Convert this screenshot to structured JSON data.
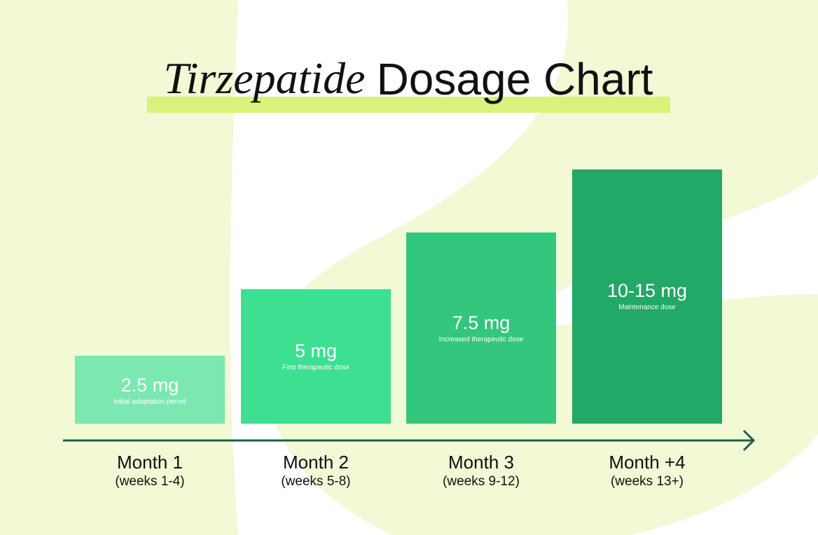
{
  "title": {
    "emphasis": "Tirzepatide",
    "rest": "Dosage Chart"
  },
  "steps": [
    {
      "dose": "2.5 mg",
      "note": "Initial adaptation period",
      "period": "Month 1",
      "weeks": "(weeks 1-4)"
    },
    {
      "dose": "5 mg",
      "note": "First therapeutic dose",
      "period": "Month 2",
      "weeks": "(weeks 5-8)"
    },
    {
      "dose": "7.5 mg",
      "note": "Increased therapeutic dose",
      "period": "Month 3",
      "weeks": "(weeks 9-12)"
    },
    {
      "dose": "10-15 mg",
      "note": "Maintenance dose",
      "period": "Month +4",
      "weeks": "(weeks 13+)"
    }
  ]
}
